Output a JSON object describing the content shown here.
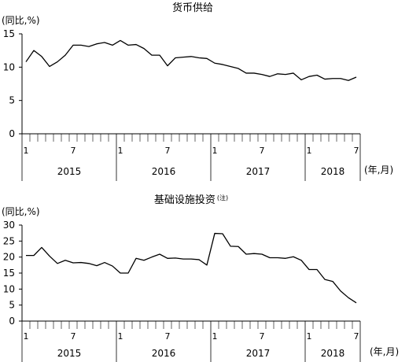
{
  "chart_data": [
    {
      "type": "line",
      "title": "货币供给",
      "unit_label": "(同比,%)",
      "x_unit_label": "(年,月)",
      "ylim": [
        0,
        15
      ],
      "yticks": [
        0,
        5,
        10,
        15
      ],
      "years": [
        "2015",
        "2016",
        "2017",
        "2018"
      ],
      "month_labels": [
        "1",
        "7",
        "1",
        "7",
        "1",
        "7",
        "1",
        "7"
      ],
      "x": [
        "2015-01",
        "2015-02",
        "2015-03",
        "2015-04",
        "2015-05",
        "2015-06",
        "2015-07",
        "2015-08",
        "2015-09",
        "2015-10",
        "2015-11",
        "2015-12",
        "2016-01",
        "2016-02",
        "2016-03",
        "2016-04",
        "2016-05",
        "2016-06",
        "2016-07",
        "2016-08",
        "2016-09",
        "2016-10",
        "2016-11",
        "2016-12",
        "2017-01",
        "2017-02",
        "2017-03",
        "2017-04",
        "2017-05",
        "2017-06",
        "2017-07",
        "2017-08",
        "2017-09",
        "2017-10",
        "2017-11",
        "2017-12",
        "2018-01",
        "2018-02",
        "2018-03",
        "2018-04",
        "2018-05",
        "2018-06",
        "2018-07"
      ],
      "values": [
        10.8,
        12.5,
        11.6,
        10.1,
        10.8,
        11.8,
        13.3,
        13.3,
        13.1,
        13.5,
        13.7,
        13.3,
        14.0,
        13.3,
        13.4,
        12.8,
        11.8,
        11.8,
        10.2,
        11.4,
        11.5,
        11.6,
        11.4,
        11.3,
        10.6,
        10.4,
        10.1,
        9.8,
        9.1,
        9.1,
        8.9,
        8.6,
        9.0,
        8.9,
        9.1,
        8.1,
        8.6,
        8.8,
        8.2,
        8.3,
        8.3,
        8.0,
        8.5
      ]
    },
    {
      "type": "line",
      "title": "基础设施投资",
      "title_note": "(注)",
      "unit_label": "(同比,%)",
      "x_unit_label": "(年,月)",
      "ylim": [
        0,
        30
      ],
      "yticks": [
        0,
        5,
        10,
        15,
        20,
        25,
        30
      ],
      "years": [
        "2015",
        "2016",
        "2017",
        "2018"
      ],
      "month_labels": [
        "1",
        "7",
        "1",
        "7",
        "1",
        "7",
        "1",
        "7"
      ],
      "x": [
        "2015-01",
        "2015-02",
        "2015-03",
        "2015-04",
        "2015-05",
        "2015-06",
        "2015-07",
        "2015-08",
        "2015-09",
        "2015-10",
        "2015-11",
        "2015-12",
        "2016-01",
        "2016-02",
        "2016-03",
        "2016-04",
        "2016-05",
        "2016-06",
        "2016-07",
        "2016-08",
        "2016-09",
        "2016-10",
        "2016-11",
        "2016-12",
        "2017-01",
        "2017-02",
        "2017-03",
        "2017-04",
        "2017-05",
        "2017-06",
        "2017-07",
        "2017-08",
        "2017-09",
        "2017-10",
        "2017-11",
        "2017-12",
        "2018-01",
        "2018-02",
        "2018-03",
        "2018-04",
        "2018-05",
        "2018-06",
        "2018-07"
      ],
      "values": [
        20.5,
        20.5,
        23.0,
        20.3,
        18.0,
        19.0,
        18.2,
        18.3,
        18.0,
        17.3,
        18.3,
        17.2,
        15.0,
        15.0,
        19.6,
        19.0,
        20.0,
        20.9,
        19.6,
        19.7,
        19.4,
        19.4,
        19.2,
        17.5,
        27.4,
        27.3,
        23.4,
        23.3,
        20.9,
        21.1,
        20.9,
        19.8,
        19.8,
        19.6,
        20.1,
        19.0,
        16.1,
        16.1,
        13.0,
        12.4,
        9.4,
        7.3,
        5.7
      ]
    }
  ]
}
